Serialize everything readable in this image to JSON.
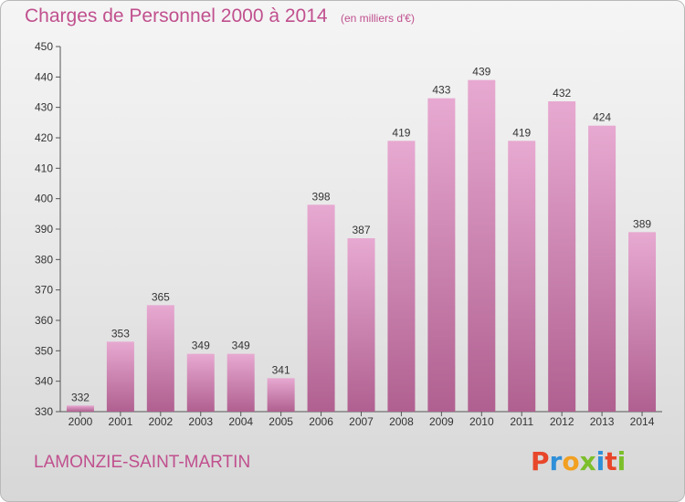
{
  "header": {
    "title": "Charges de Personnel 2000 à 2014",
    "subtitle": "(en milliers d'€)"
  },
  "footer": {
    "place": "LAMONZIE-SAINT-MARTIN",
    "logo_text": "Proxiti",
    "logo_colors": [
      "#e8462a",
      "#2f8fd8",
      "#f2a021",
      "#7cbf2a",
      "#2f8fd8",
      "#e8462a",
      "#7cbf2a"
    ]
  },
  "colors": {
    "bar_top": "#e7a9d1",
    "bar_bottom": "#b06090",
    "accent": "#c0508e"
  },
  "chart_data": {
    "type": "bar",
    "title": "Charges de Personnel 2000 à 2014",
    "subtitle": "(en milliers d'€)",
    "categories": [
      "2000",
      "2001",
      "2002",
      "2003",
      "2004",
      "2005",
      "2006",
      "2007",
      "2008",
      "2009",
      "2010",
      "2011",
      "2012",
      "2013",
      "2014"
    ],
    "values": [
      332,
      353,
      365,
      349,
      349,
      341,
      398,
      387,
      419,
      433,
      439,
      419,
      432,
      424,
      389
    ],
    "ylim": [
      330,
      450
    ],
    "yticks": [
      330,
      340,
      350,
      360,
      370,
      380,
      390,
      400,
      410,
      420,
      430,
      440,
      450
    ],
    "grid": false
  }
}
